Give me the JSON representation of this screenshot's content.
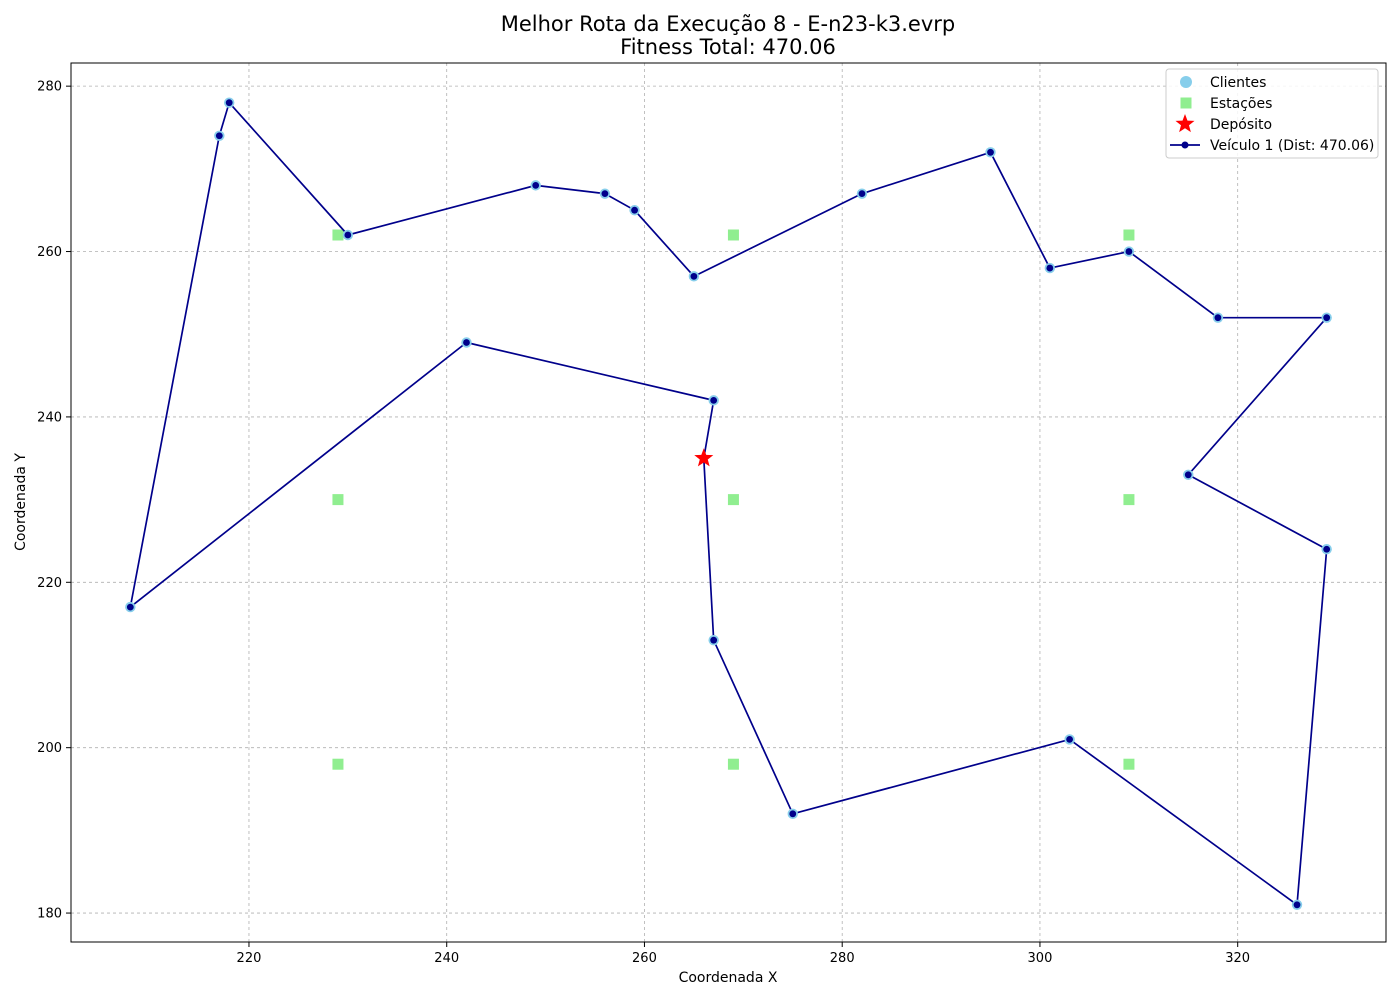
{
  "chart_data": {
    "type": "scatter",
    "title": "Melhor Rota da Execução 8 - E-n23-k3.evrp",
    "subtitle": "Fitness Total: 470.06",
    "xlabel": "Coordenada X",
    "ylabel": "Coordenada Y",
    "xlim": [
      202,
      335
    ],
    "ylim": [
      176.5,
      282.8
    ],
    "xticks": [
      220,
      240,
      260,
      280,
      300,
      320
    ],
    "yticks": [
      180,
      200,
      220,
      240,
      260,
      280
    ],
    "grid": true,
    "legend_position": "top-right",
    "colors": {
      "clients": "#87ceeb",
      "stations": "#90ee90",
      "depot": "#ff0000",
      "route": "#00008b"
    },
    "legend": [
      {
        "key": "clients",
        "label": "Clientes"
      },
      {
        "key": "stations",
        "label": "Estações"
      },
      {
        "key": "depot",
        "label": "Depósito"
      },
      {
        "key": "route",
        "label": "Veículo 1 (Dist: 470.06)"
      }
    ],
    "depot": {
      "x": 266,
      "y": 235
    },
    "stations": [
      {
        "x": 229,
        "y": 262
      },
      {
        "x": 269,
        "y": 262
      },
      {
        "x": 309,
        "y": 262
      },
      {
        "x": 229,
        "y": 230
      },
      {
        "x": 269,
        "y": 230
      },
      {
        "x": 309,
        "y": 230
      },
      {
        "x": 229,
        "y": 198
      },
      {
        "x": 269,
        "y": 198
      },
      {
        "x": 309,
        "y": 198
      }
    ],
    "route": [
      {
        "x": 266,
        "y": 235
      },
      {
        "x": 267,
        "y": 242
      },
      {
        "x": 242,
        "y": 249
      },
      {
        "x": 208,
        "y": 217
      },
      {
        "x": 217,
        "y": 274
      },
      {
        "x": 218,
        "y": 278
      },
      {
        "x": 230,
        "y": 262
      },
      {
        "x": 249,
        "y": 268
      },
      {
        "x": 256,
        "y": 267
      },
      {
        "x": 259,
        "y": 265
      },
      {
        "x": 265,
        "y": 257
      },
      {
        "x": 282,
        "y": 267
      },
      {
        "x": 295,
        "y": 272
      },
      {
        "x": 301,
        "y": 258
      },
      {
        "x": 309,
        "y": 260
      },
      {
        "x": 318,
        "y": 252
      },
      {
        "x": 329,
        "y": 252
      },
      {
        "x": 315,
        "y": 233
      },
      {
        "x": 329,
        "y": 224
      },
      {
        "x": 326,
        "y": 181
      },
      {
        "x": 303,
        "y": 201
      },
      {
        "x": 275,
        "y": 192
      },
      {
        "x": 267,
        "y": 213
      },
      {
        "x": 266,
        "y": 235
      }
    ]
  }
}
